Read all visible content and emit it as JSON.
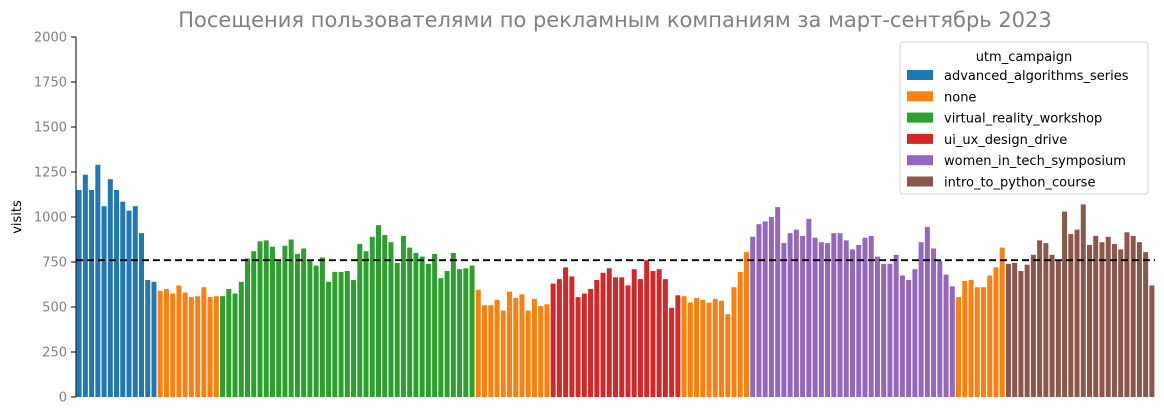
{
  "chart_data": {
    "type": "bar",
    "title": "Посещения пользователями по рекламным компаниям за март-сентябрь 2023",
    "xlabel": "",
    "ylabel": "visits",
    "ylim": [
      0,
      2000
    ],
    "yticks": [
      0,
      250,
      500,
      750,
      1000,
      1250,
      1500,
      1750,
      2000
    ],
    "grid": false,
    "reference_line": {
      "value": 760,
      "style": "dashed",
      "color": "#000000"
    },
    "legend": {
      "title": "utm_campaign",
      "position": "top-right",
      "entries": [
        {
          "name": "advanced_algorithms_series",
          "color": "#1f77b4"
        },
        {
          "name": "none",
          "color": "#ff7f0e"
        },
        {
          "name": "virtual_reality_workshop",
          "color": "#2ca02c"
        },
        {
          "name": "ui_ux_design_drive",
          "color": "#d62728"
        },
        {
          "name": "women_in_tech_symposium",
          "color": "#9467bd"
        },
        {
          "name": "intro_to_python_course",
          "color": "#8c564b"
        }
      ]
    },
    "series": [
      {
        "name": "advanced_algorithms_series",
        "values": [
          1150,
          1235,
          1150,
          1290,
          1060,
          1210,
          1150,
          1085,
          1035,
          1060,
          910,
          650,
          640
        ]
      },
      {
        "name": "none",
        "values": [
          590,
          600,
          575,
          620,
          580,
          555,
          560,
          610,
          555,
          560
        ]
      },
      {
        "name": "virtual_reality_workshop",
        "values": [
          560,
          600,
          575,
          640,
          770,
          810,
          865,
          870,
          835,
          755,
          840,
          875,
          795,
          825,
          760,
          730,
          775,
          640,
          695,
          695,
          700,
          650,
          850,
          810,
          890,
          955,
          900,
          860,
          745,
          895,
          830,
          800,
          780,
          740,
          795,
          660,
          700,
          800,
          710,
          715,
          730
        ]
      },
      {
        "name": "none",
        "values": [
          595,
          510,
          510,
          540,
          480,
          585,
          550,
          570,
          480,
          545,
          505,
          515
        ]
      },
      {
        "name": "ui_ux_design_drive",
        "values": [
          630,
          655,
          720,
          670,
          555,
          575,
          600,
          650,
          690,
          715,
          665,
          665,
          620,
          710,
          655,
          760,
          700,
          710,
          655,
          495,
          565
        ]
      },
      {
        "name": "none",
        "values": [
          560,
          525,
          550,
          540,
          525,
          545,
          535,
          460,
          610,
          695,
          805
        ]
      },
      {
        "name": "women_in_tech_symposium",
        "values": [
          890,
          960,
          975,
          1000,
          1055,
          855,
          910,
          930,
          895,
          990,
          885,
          860,
          855,
          910,
          910,
          870,
          820,
          845,
          885,
          895,
          780,
          740,
          740,
          790,
          675,
          650,
          710,
          860,
          945,
          825,
          755,
          680,
          615
        ]
      },
      {
        "name": "none",
        "values": [
          555,
          645,
          650,
          610,
          610,
          675,
          720,
          830
        ]
      },
      {
        "name": "intro_to_python_course",
        "values": [
          740,
          745,
          700,
          735,
          790,
          870,
          855,
          790,
          760,
          1030,
          905,
          930,
          1070,
          845,
          895,
          860,
          890,
          850,
          820,
          915,
          895,
          860,
          805,
          620
        ]
      }
    ]
  }
}
